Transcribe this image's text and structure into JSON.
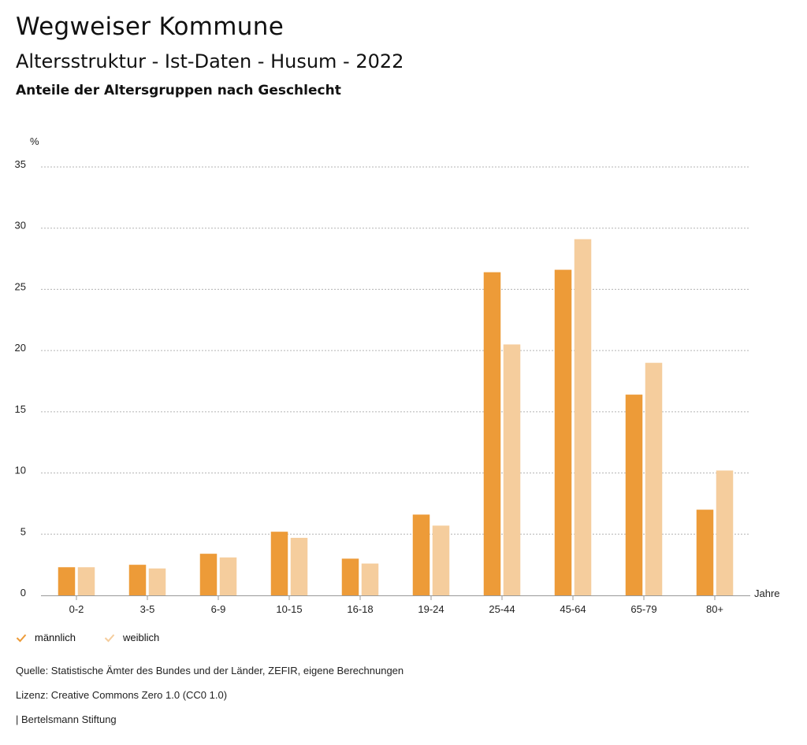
{
  "header": {
    "title": "Wegweiser Kommune",
    "subtitle": "Altersstruktur - Ist-Daten - Husum - 2022",
    "chart_title": "Anteile der Altersgruppen nach Geschlecht"
  },
  "colors": {
    "maennlich": "#ed9b38",
    "weiblich": "#f5cd9d",
    "grid": "#b3b3b3"
  },
  "chart_data": {
    "type": "bar",
    "title": "Anteile der Altersgruppen nach Geschlecht",
    "ylabel": "%",
    "xlabel": "Jahre",
    "ylim": [
      0,
      35
    ],
    "yticks": [
      0,
      5,
      10,
      15,
      20,
      25,
      30,
      35
    ],
    "grid": true,
    "legend_position": "bottom-left",
    "categories": [
      "0-2",
      "3-5",
      "6-9",
      "10-15",
      "16-18",
      "19-24",
      "25-44",
      "45-64",
      "65-79",
      "80+"
    ],
    "series": [
      {
        "name": "männlich",
        "values": [
          2.3,
          2.5,
          3.4,
          5.2,
          3.0,
          6.6,
          26.4,
          26.6,
          16.4,
          7.0
        ]
      },
      {
        "name": "weiblich",
        "values": [
          2.3,
          2.2,
          3.1,
          4.7,
          2.6,
          5.7,
          20.5,
          29.1,
          19.0,
          10.2
        ]
      }
    ]
  },
  "footer": {
    "source": "Quelle: Statistische Ämter des Bundes und der Länder, ZEFIR, eigene Berechnungen",
    "license": "Lizenz: Creative Commons Zero 1.0 (CC0 1.0)",
    "publisher": "| Bertelsmann Stiftung"
  }
}
